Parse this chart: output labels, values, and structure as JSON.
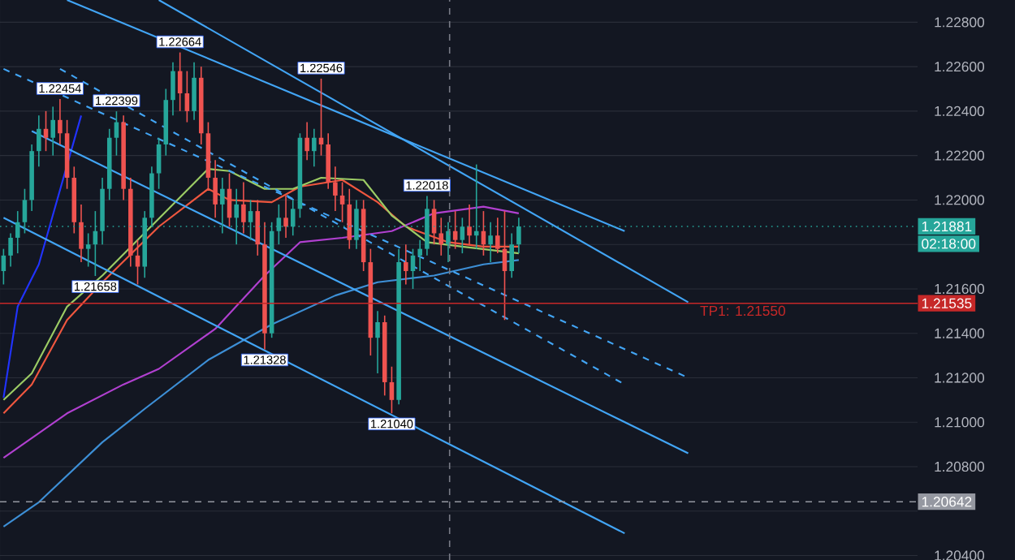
{
  "chart_data": {
    "type": "candlestick",
    "categories": [
      null,
      null,
      null,
      null,
      null,
      null,
      null,
      null,
      null,
      null,
      null,
      null,
      null,
      null,
      null,
      null,
      null,
      null,
      null,
      null,
      null,
      null,
      null,
      null,
      null,
      null,
      null,
      null,
      null,
      null,
      null,
      null,
      null,
      null,
      null,
      null,
      null,
      null,
      null,
      null,
      null,
      null,
      null,
      null,
      null,
      null,
      null,
      null,
      null,
      null,
      null,
      null,
      null,
      null,
      null,
      null,
      null,
      null,
      null,
      null,
      null,
      null,
      null,
      null,
      null,
      null,
      null,
      null,
      null,
      null,
      null,
      null,
      null,
      null,
      null,
      null,
      null,
      null,
      null,
      null,
      null,
      null,
      null,
      null,
      null,
      null,
      null,
      null,
      null,
      null,
      null,
      null,
      null,
      null,
      null,
      null,
      null,
      null,
      null,
      null,
      null,
      null,
      null,
      null,
      null,
      null,
      null,
      null,
      null,
      null,
      null,
      null,
      null,
      null,
      null,
      null,
      null,
      null,
      null,
      null,
      null,
      null,
      null,
      null,
      null,
      null,
      null,
      null,
      null,
      null
    ],
    "ohlc": [
      [
        1.2168,
        1.2178,
        1.2162,
        1.2175
      ],
      [
        1.2175,
        1.2185,
        1.217,
        1.2183
      ],
      [
        1.2183,
        1.2195,
        1.2176,
        1.219
      ],
      [
        1.219,
        1.2205,
        1.2185,
        1.22
      ],
      [
        1.22,
        1.2225,
        1.2195,
        1.2222
      ],
      [
        1.2222,
        1.2238,
        1.2215,
        1.2232
      ],
      [
        1.2232,
        1.224,
        1.2222,
        1.2228
      ],
      [
        1.2228,
        1.2242,
        1.222,
        1.2236
      ],
      [
        1.2236,
        1.22454,
        1.2225,
        1.223
      ],
      [
        1.223,
        1.2236,
        1.2205,
        1.221
      ],
      [
        1.221,
        1.2215,
        1.2185,
        1.219
      ],
      [
        1.219,
        1.2198,
        1.2172,
        1.2178
      ],
      [
        1.2178,
        1.2185,
        1.217,
        1.218
      ],
      [
        1.218,
        1.2195,
        1.21658,
        1.2186
      ],
      [
        1.2186,
        1.221,
        1.218,
        1.2205
      ],
      [
        1.2205,
        1.2232,
        1.22,
        1.2228
      ],
      [
        1.2228,
        1.22399,
        1.222,
        1.2235
      ],
      [
        1.2235,
        1.2238,
        1.22,
        1.2205
      ],
      [
        1.2205,
        1.221,
        1.217,
        1.2175
      ],
      [
        1.2175,
        1.2182,
        1.2162,
        1.217
      ],
      [
        1.217,
        1.2195,
        1.2165,
        1.2192
      ],
      [
        1.2192,
        1.2215,
        1.2188,
        1.2212
      ],
      [
        1.2212,
        1.2228,
        1.2205,
        1.2225
      ],
      [
        1.2225,
        1.225,
        1.222,
        1.2245
      ],
      [
        1.2245,
        1.2262,
        1.2238,
        1.2258
      ],
      [
        1.2258,
        1.22664,
        1.224,
        1.2248
      ],
      [
        1.2248,
        1.2258,
        1.2235,
        1.224
      ],
      [
        1.224,
        1.2262,
        1.2236,
        1.2255
      ],
      [
        1.2255,
        1.226,
        1.2225,
        1.223
      ],
      [
        1.223,
        1.2235,
        1.2205,
        1.221
      ],
      [
        1.221,
        1.2218,
        1.2192,
        1.2198
      ],
      [
        1.2198,
        1.221,
        1.2185,
        1.2205
      ],
      [
        1.2205,
        1.2212,
        1.2188,
        1.2192
      ],
      [
        1.2192,
        1.2205,
        1.218,
        1.2198
      ],
      [
        1.2198,
        1.2208,
        1.2185,
        1.219
      ],
      [
        1.219,
        1.22,
        1.2182,
        1.2195
      ],
      [
        1.2195,
        1.22,
        1.2175,
        1.218
      ],
      [
        1.218,
        1.219,
        1.21328,
        1.214
      ],
      [
        1.214,
        1.219,
        1.2138,
        1.2186
      ],
      [
        1.2186,
        1.2198,
        1.218,
        1.2192
      ],
      [
        1.2192,
        1.2202,
        1.2183,
        1.2188
      ],
      [
        1.2188,
        1.22,
        1.2184,
        1.2196
      ],
      [
        1.2196,
        1.223,
        1.2192,
        1.2228
      ],
      [
        1.2228,
        1.2235,
        1.2218,
        1.2222
      ],
      [
        1.2222,
        1.2232,
        1.2215,
        1.2228
      ],
      [
        1.2228,
        1.22546,
        1.222,
        1.2225
      ],
      [
        1.2225,
        1.223,
        1.2205,
        1.2208
      ],
      [
        1.2208,
        1.2215,
        1.2195,
        1.2202
      ],
      [
        1.2202,
        1.2208,
        1.219,
        1.2198
      ],
      [
        1.2198,
        1.2205,
        1.2178,
        1.2182
      ],
      [
        1.2182,
        1.22,
        1.2178,
        1.2196
      ],
      [
        1.2196,
        1.22,
        1.2168,
        1.2172
      ],
      [
        1.2172,
        1.2178,
        1.213,
        1.2138
      ],
      [
        1.2138,
        1.215,
        1.2122,
        1.2145
      ],
      [
        1.2145,
        1.2148,
        1.2112,
        1.2118
      ],
      [
        1.2118,
        1.2125,
        1.2104,
        1.211
      ],
      [
        1.211,
        1.2178,
        1.2108,
        1.2172
      ],
      [
        1.2172,
        1.218,
        1.2162,
        1.2168
      ],
      [
        1.2168,
        1.2178,
        1.216,
        1.2175
      ],
      [
        1.2175,
        1.2182,
        1.2168,
        1.2178
      ],
      [
        1.2178,
        1.22018,
        1.2175,
        1.2196
      ],
      [
        1.2196,
        1.22,
        1.218,
        1.2185
      ],
      [
        1.2185,
        1.2192,
        1.2175,
        1.218
      ],
      [
        1.218,
        1.219,
        1.2172,
        1.2186
      ],
      [
        1.2186,
        1.2195,
        1.2178,
        1.2182
      ],
      [
        1.2182,
        1.2192,
        1.2176,
        1.2188
      ],
      [
        1.2188,
        1.2198,
        1.218,
        1.2184
      ],
      [
        1.2184,
        1.2216,
        1.2178,
        1.2186
      ],
      [
        1.2186,
        1.2195,
        1.2175,
        1.218
      ],
      [
        1.218,
        1.219,
        1.2172,
        1.2184
      ],
      [
        1.2184,
        1.2192,
        1.2176,
        1.2178
      ],
      [
        1.2178,
        1.2195,
        1.2146,
        1.2168
      ],
      [
        1.2168,
        1.2185,
        1.2165,
        1.218
      ],
      [
        1.218,
        1.2192,
        1.2176,
        1.21881
      ],
      null,
      null,
      null,
      null,
      null,
      null,
      null,
      null,
      null,
      null,
      null,
      null,
      null,
      null,
      null,
      null,
      null,
      null,
      null,
      null,
      null,
      null,
      null,
      null,
      null,
      null,
      null,
      null,
      null,
      null,
      null,
      null,
      null,
      null,
      null,
      null,
      null,
      null,
      null,
      null,
      null,
      null,
      null,
      null,
      null,
      null,
      null,
      null,
      null,
      null,
      null,
      null,
      null,
      null,
      null,
      null
    ],
    "colors": [
      "#26a69a",
      "#26a69a",
      "#26a69a",
      "#26a69a",
      "#26a69a",
      "#26a69a",
      "#ef5350",
      "#26a69a",
      "#ef5350",
      "#ef5350",
      "#ef5350",
      "#ef5350",
      "#26a69a",
      "#26a69a",
      "#26a69a",
      "#26a69a",
      "#26a69a",
      "#ef5350",
      "#ef5350",
      "#ef5350",
      "#26a69a",
      "#26a69a",
      "#26a69a",
      "#26a69a",
      "#26a69a",
      "#ef5350",
      "#ef5350",
      "#26a69a",
      "#ef5350",
      "#ef5350",
      "#ef5350",
      "#26a69a",
      "#ef5350",
      "#26a69a",
      "#ef5350",
      "#26a69a",
      "#ef5350",
      "#ef5350",
      "#26a69a",
      "#26a69a",
      "#ef5350",
      "#26a69a",
      "#26a69a",
      "#ef5350",
      "#26a69a",
      "#ef5350",
      "#ef5350",
      "#ef5350",
      "#ef5350",
      "#ef5350",
      "#26a69a",
      "#ef5350",
      "#ef5350",
      "#26a69a",
      "#ef5350",
      "#ef5350",
      "#26a69a",
      "#ef5350",
      "#26a69a",
      "#26a69a",
      "#26a69a",
      "#ef5350",
      "#ef5350",
      "#26a69a",
      "#ef5350",
      "#26a69a",
      "#ef5350",
      "#26a69a",
      "#ef5350",
      "#26a69a",
      "#ef5350",
      "#ef5350",
      "#26a69a",
      "#26a69a",
      null,
      null,
      null,
      null,
      null,
      null,
      null,
      null,
      null,
      null,
      null,
      null,
      null,
      null,
      null,
      null,
      null,
      null,
      null,
      null,
      null,
      null,
      null,
      null,
      null,
      null,
      null,
      null,
      null,
      null,
      null,
      null,
      null,
      null,
      null,
      null,
      null,
      null,
      null,
      null,
      null,
      null,
      null,
      null,
      null,
      null,
      null,
      null,
      null,
      null,
      null,
      null,
      null,
      null,
      null,
      null
    ],
    "series": [
      {
        "type": "line",
        "color": "#3d8fd6",
        "values": [
          1.2053,
          null,
          null,
          null,
          null,
          1.2064,
          null,
          null,
          null,
          null,
          null,
          null,
          null,
          null,
          1.2091,
          null,
          null,
          null,
          null,
          null,
          1.2106,
          null,
          null,
          null,
          null,
          null,
          null,
          null,
          null,
          1.2128,
          null,
          null,
          null,
          null,
          null,
          null,
          null,
          null,
          1.2144,
          null,
          null,
          null,
          null,
          null,
          null,
          null,
          null,
          1.2157,
          null,
          null,
          null,
          null,
          null,
          1.2163,
          null,
          null,
          null,
          null,
          null,
          null,
          null,
          1.2166,
          null,
          null,
          null,
          null,
          null,
          null,
          1.2171,
          null,
          null,
          null,
          null,
          1.2173,
          null,
          null,
          null,
          null,
          null,
          null,
          null,
          null,
          null,
          null,
          null,
          null,
          null,
          null,
          null,
          null,
          null,
          null,
          null,
          null,
          null,
          null,
          null,
          null,
          null,
          null,
          null,
          null,
          null,
          null,
          null,
          null,
          null,
          null,
          null,
          null,
          null,
          null,
          null,
          null,
          null,
          null,
          null,
          null,
          null,
          null,
          null,
          null,
          null,
          null,
          null,
          null,
          null,
          null,
          null,
          null
        ]
      },
      {
        "type": "line",
        "color": "#b140d0",
        "values": [
          1.2084,
          null,
          null,
          null,
          null,
          null,
          null,
          null,
          null,
          1.2104,
          null,
          null,
          null,
          null,
          null,
          null,
          null,
          1.2117,
          null,
          null,
          null,
          null,
          1.2124,
          null,
          null,
          null,
          null,
          null,
          null,
          null,
          1.2142,
          null,
          null,
          null,
          null,
          null,
          null,
          1.2166,
          null,
          null,
          null,
          null,
          1.2181,
          null,
          null,
          null,
          null,
          null,
          1.2183,
          null,
          null,
          null,
          null,
          null,
          null,
          1.2186,
          null,
          null,
          null,
          null,
          null,
          1.2194,
          null,
          null,
          null,
          null,
          null,
          null,
          1.2197,
          null,
          null,
          null,
          null,
          1.2194,
          null,
          null,
          null,
          null,
          null,
          null,
          null,
          null,
          null,
          null,
          null,
          null,
          null,
          null,
          null,
          null,
          null,
          null,
          null,
          null,
          null,
          null,
          null,
          null,
          null,
          null,
          null,
          null,
          null,
          null,
          null,
          null,
          null,
          null,
          null,
          null,
          null,
          null,
          null,
          null,
          null,
          null,
          null,
          null,
          null,
          null,
          null,
          null,
          null,
          null,
          null,
          null,
          null,
          null,
          null,
          null
        ]
      },
      {
        "type": "line",
        "color": "#f0573f",
        "values": [
          1.2104,
          null,
          null,
          null,
          1.2117,
          null,
          null,
          null,
          null,
          1.2146,
          null,
          null,
          null,
          null,
          1.2163,
          null,
          null,
          null,
          null,
          null,
          null,
          null,
          1.2188,
          null,
          null,
          null,
          null,
          null,
          null,
          1.2205,
          null,
          null,
          1.22,
          null,
          null,
          null,
          null,
          null,
          1.2199,
          null,
          null,
          null,
          1.2206,
          null,
          null,
          null,
          null,
          null,
          1.2209,
          null,
          null,
          null,
          null,
          1.2199,
          null,
          null,
          null,
          1.2188,
          null,
          null,
          null,
          null,
          null,
          1.2181,
          null,
          null,
          null,
          null,
          1.2179,
          null,
          null,
          null,
          null,
          1.2179,
          null,
          null,
          null,
          null,
          null,
          null,
          null,
          null,
          null,
          null,
          null,
          null,
          null,
          null,
          null,
          null,
          null,
          null,
          null,
          null,
          null,
          null,
          null,
          null,
          null,
          null,
          null,
          null,
          null,
          null,
          null,
          null,
          null,
          null,
          null,
          null,
          null,
          null,
          null,
          null,
          null,
          null,
          null,
          null,
          null,
          null,
          null,
          null,
          null,
          null,
          null,
          null,
          null,
          null,
          null,
          null
        ]
      },
      {
        "type": "line",
        "color": "#9ccc65",
        "values": [
          1.211,
          null,
          null,
          null,
          1.2122,
          null,
          null,
          null,
          null,
          1.2152,
          null,
          null,
          null,
          null,
          1.2166,
          null,
          null,
          null,
          null,
          null,
          null,
          null,
          null,
          null,
          null,
          null,
          null,
          null,
          null,
          1.2214,
          null,
          null,
          1.2213,
          null,
          null,
          null,
          null,
          1.2205,
          null,
          null,
          null,
          1.2205,
          null,
          null,
          null,
          1.221,
          null,
          null,
          null,
          null,
          null,
          1.2209,
          null,
          null,
          null,
          1.2193,
          null,
          null,
          null,
          null,
          1.2181,
          null,
          null,
          null,
          null,
          1.2179,
          null,
          null,
          null,
          null,
          null,
          null,
          null,
          1.2176,
          null,
          null,
          null,
          null,
          null,
          null,
          null,
          null,
          null,
          null,
          null,
          null,
          null,
          null,
          null,
          null,
          null,
          null,
          null,
          null,
          null,
          null,
          null,
          null,
          null,
          null,
          null,
          null,
          null,
          null,
          null,
          null,
          null,
          null,
          null,
          null,
          null,
          null,
          null,
          null,
          null,
          null,
          null,
          null,
          null,
          null,
          null,
          null,
          null,
          null,
          null,
          null,
          null,
          null,
          null,
          null
        ]
      },
      {
        "type": "line",
        "color": "#2133ff",
        "values": [
          1.2111,
          null,
          1.2152,
          null,
          null,
          1.2171,
          null,
          null,
          null,
          null,
          null,
          1.2238,
          null,
          null,
          null,
          null,
          null,
          null,
          null,
          null,
          null,
          null,
          null,
          null,
          null,
          null,
          null,
          null,
          null,
          null,
          null,
          null,
          null,
          null,
          null,
          null,
          null,
          null,
          null,
          null,
          null,
          null,
          null,
          null,
          null,
          null,
          null,
          null,
          null,
          null,
          null,
          null,
          null,
          null,
          null,
          null,
          null,
          null,
          null,
          null,
          null,
          null,
          null,
          null,
          null,
          null,
          null,
          null,
          null,
          null,
          null,
          null,
          null,
          null,
          null,
          null,
          null,
          null,
          null,
          null,
          null,
          null,
          null,
          null,
          null,
          null,
          null,
          null,
          null,
          null,
          null,
          null,
          null,
          null,
          null,
          null,
          null,
          null,
          null,
          null,
          null,
          null,
          null,
          null,
          null,
          null,
          null,
          null,
          null,
          null,
          null,
          null,
          null,
          null,
          null,
          null,
          null,
          null,
          null,
          null,
          null,
          null,
          null,
          null,
          null,
          null,
          null,
          null,
          null,
          null
        ]
      },
      {
        "type": "line",
        "color": "#42a5f5",
        "values": [
          null,
          null,
          null,
          null,
          null,
          null,
          null,
          null,
          null,
          1.229,
          null,
          null,
          null,
          null,
          null,
          null,
          null,
          null,
          null,
          null,
          null,
          null,
          null,
          null,
          null,
          null,
          null,
          null,
          null,
          null,
          null,
          null,
          null,
          null,
          null,
          null,
          null,
          null,
          null,
          null,
          null,
          null,
          null,
          null,
          null,
          null,
          null,
          null,
          null,
          null,
          null,
          null,
          null,
          null,
          null,
          null,
          null,
          null,
          null,
          null,
          null,
          null,
          null,
          null,
          null,
          null,
          null,
          null,
          null,
          null,
          null,
          null,
          null,
          null,
          null,
          null,
          null,
          null,
          null,
          null,
          null,
          null,
          null,
          null,
          null,
          null,
          null,
          null,
          1.2186,
          null,
          null,
          null,
          null,
          null,
          null,
          null,
          null,
          null,
          null,
          null,
          null,
          null,
          null,
          null,
          null,
          null,
          null,
          null,
          null,
          null,
          null,
          null,
          null,
          null,
          null,
          null,
          null,
          null,
          null,
          null,
          null,
          null,
          null,
          null,
          null,
          null,
          null,
          null,
          null,
          null
        ]
      },
      {
        "type": "line",
        "color": "#42a5f5",
        "values": [
          null,
          null,
          null,
          null,
          null,
          null,
          null,
          null,
          null,
          null,
          null,
          null,
          null,
          null,
          null,
          null,
          null,
          null,
          null,
          null,
          null,
          null,
          1.229,
          null,
          null,
          null,
          null,
          null,
          null,
          null,
          null,
          null,
          null,
          null,
          null,
          null,
          null,
          null,
          null,
          null,
          null,
          null,
          null,
          null,
          null,
          null,
          null,
          null,
          null,
          null,
          null,
          null,
          null,
          null,
          null,
          null,
          null,
          null,
          null,
          null,
          null,
          null,
          null,
          null,
          null,
          null,
          null,
          null,
          null,
          null,
          null,
          null,
          null,
          null,
          null,
          null,
          null,
          null,
          null,
          null,
          null,
          null,
          null,
          null,
          null,
          null,
          null,
          null,
          null,
          null,
          null,
          null,
          null,
          null,
          null,
          null,
          null,
          1.2154,
          null,
          null,
          null,
          null,
          null,
          null,
          null,
          null,
          null,
          null,
          null,
          null,
          null,
          null,
          null,
          null,
          null,
          null,
          null,
          null,
          null,
          null,
          null,
          null,
          null,
          null,
          null,
          null,
          null,
          null,
          null,
          null
        ]
      },
      {
        "type": "line",
        "color": "#42a5f5",
        "values": [
          null,
          null,
          null,
          null,
          1.2231,
          null,
          null,
          null,
          null,
          null,
          null,
          null,
          null,
          null,
          null,
          null,
          null,
          null,
          null,
          null,
          null,
          null,
          null,
          null,
          null,
          null,
          null,
          null,
          null,
          null,
          null,
          null,
          null,
          null,
          null,
          null,
          null,
          null,
          null,
          null,
          null,
          null,
          null,
          null,
          null,
          null,
          null,
          null,
          null,
          null,
          null,
          null,
          null,
          null,
          null,
          null,
          null,
          null,
          null,
          null,
          null,
          null,
          null,
          null,
          null,
          null,
          null,
          null,
          null,
          null,
          null,
          null,
          null,
          null,
          null,
          null,
          null,
          null,
          null,
          null,
          null,
          null,
          null,
          null,
          null,
          null,
          null,
          null,
          null,
          null,
          null,
          null,
          null,
          null,
          null,
          null,
          null,
          1.2086,
          null,
          null,
          null,
          null,
          null,
          null,
          null,
          null,
          null,
          null,
          null,
          null,
          null,
          null,
          null,
          null,
          null,
          null,
          null,
          null,
          null,
          null,
          null,
          null,
          null,
          null,
          null,
          null,
          null,
          null,
          null,
          null
        ]
      },
      {
        "type": "line",
        "color": "#42a5f5",
        "values": [
          1.2192,
          null,
          null,
          null,
          null,
          null,
          null,
          null,
          null,
          null,
          null,
          null,
          null,
          null,
          null,
          null,
          null,
          null,
          null,
          null,
          null,
          null,
          null,
          null,
          null,
          null,
          null,
          null,
          null,
          null,
          null,
          null,
          null,
          null,
          null,
          null,
          null,
          null,
          null,
          null,
          null,
          null,
          null,
          null,
          null,
          null,
          null,
          null,
          null,
          null,
          null,
          null,
          null,
          null,
          null,
          null,
          null,
          null,
          null,
          null,
          null,
          null,
          null,
          null,
          null,
          null,
          null,
          null,
          null,
          null,
          null,
          null,
          null,
          null,
          null,
          null,
          null,
          null,
          null,
          null,
          null,
          null,
          null,
          null,
          null,
          null,
          null,
          null,
          1.205,
          null,
          null,
          null,
          null,
          null,
          null,
          null,
          null,
          null,
          null,
          null,
          null,
          null,
          null,
          null,
          null,
          null,
          null,
          null,
          null,
          null,
          null,
          null,
          null,
          null,
          null,
          null,
          null,
          null,
          null,
          null,
          null,
          null,
          null,
          null,
          null,
          null,
          null,
          null,
          null,
          null
        ]
      },
      {
        "type": "line",
        "color": "#42a5f5",
        "line_style": "dashed",
        "values": [
          1.2259,
          null,
          null,
          null,
          null,
          null,
          null,
          null,
          null,
          null,
          null,
          null,
          null,
          null,
          null,
          null,
          null,
          null,
          null,
          null,
          null,
          null,
          null,
          null,
          null,
          null,
          null,
          null,
          null,
          null,
          null,
          null,
          null,
          null,
          null,
          null,
          null,
          null,
          null,
          null,
          null,
          null,
          null,
          null,
          null,
          null,
          null,
          null,
          null,
          null,
          null,
          null,
          null,
          null,
          null,
          null,
          null,
          null,
          null,
          null,
          null,
          null,
          null,
          null,
          null,
          null,
          null,
          null,
          null,
          null,
          null,
          null,
          null,
          null,
          null,
          null,
          null,
          null,
          null,
          null,
          null,
          null,
          null,
          null,
          null,
          null,
          null,
          null,
          null,
          null,
          null,
          null,
          null,
          null,
          null,
          null,
          null,
          1.212,
          null,
          null,
          null,
          null,
          null,
          null,
          null,
          null,
          null,
          null,
          null,
          null,
          null,
          null,
          null,
          null,
          null,
          null,
          null,
          null,
          null,
          null,
          null,
          null,
          null,
          null,
          null,
          null,
          null,
          null,
          null,
          null
        ]
      },
      {
        "type": "line",
        "color": "#42a5f5",
        "line_style": "dashed",
        "values": [
          null,
          null,
          null,
          null,
          null,
          null,
          null,
          null,
          1.2259,
          null,
          null,
          null,
          null,
          null,
          null,
          null,
          null,
          null,
          null,
          null,
          null,
          null,
          null,
          null,
          null,
          null,
          null,
          null,
          null,
          null,
          null,
          null,
          null,
          null,
          null,
          null,
          null,
          null,
          null,
          null,
          null,
          null,
          null,
          null,
          null,
          null,
          null,
          null,
          null,
          null,
          null,
          null,
          null,
          null,
          null,
          null,
          null,
          null,
          null,
          null,
          null,
          null,
          null,
          null,
          null,
          null,
          null,
          null,
          null,
          null,
          null,
          null,
          null,
          null,
          null,
          null,
          null,
          null,
          null,
          null,
          null,
          null,
          null,
          null,
          null,
          null,
          null,
          null,
          1.2117,
          null,
          null,
          null,
          null,
          null,
          null,
          null,
          null,
          null,
          null,
          null,
          null,
          null,
          null,
          null,
          null,
          null,
          null,
          null,
          null,
          null,
          null,
          null,
          null,
          null,
          null,
          null,
          null,
          null,
          null,
          null,
          null,
          null,
          null,
          null,
          null,
          null,
          null,
          null,
          null,
          null
        ]
      }
    ],
    "ylim": [
      1.2038,
      1.229
    ],
    "yticks": [
      {
        "value": 1.204,
        "label": "1.20400"
      },
      {
        "value": 1.206,
        "label": null
      },
      {
        "value": 1.208,
        "label": "1.20800"
      },
      {
        "value": 1.21,
        "label": "1.21000"
      },
      {
        "value": 1.212,
        "label": "1.21200"
      },
      {
        "value": 1.214,
        "label": "1.21400"
      },
      {
        "value": 1.216,
        "label": "1.21600"
      },
      {
        "value": 1.218,
        "label": null
      },
      {
        "value": 1.22,
        "label": "1.22000"
      },
      {
        "value": 1.222,
        "label": "1.22200"
      },
      {
        "value": 1.224,
        "label": "1.22400"
      },
      {
        "value": 1.226,
        "label": "1.22600"
      },
      {
        "value": 1.228,
        "label": "1.22800"
      }
    ],
    "tick_labels": "y",
    "grid": "y",
    "ref_lines": [
      {
        "axis": "y",
        "value": 1.21881,
        "label": "1.21881",
        "color": "#26a69a",
        "line_style": "dotted"
      },
      {
        "axis": "y",
        "value": 1.21535,
        "label": "1.21535",
        "color": "#c62828",
        "line_style": "solid"
      },
      {
        "axis": "y",
        "value": 1.20642,
        "label": "1.20642",
        "color": "#9598a1",
        "line_style": "dashed"
      }
    ],
    "annotations": [
      {
        "text": "1.22454",
        "y": 1.22454
      },
      {
        "text": "1.22399",
        "y": 1.22399
      },
      {
        "text": "1.22664",
        "y": 1.22664
      },
      {
        "text": "1.22546",
        "y": 1.22546
      },
      {
        "text": "1.22018",
        "y": 1.22018
      },
      {
        "text": "1.21658",
        "y": 1.21658
      },
      {
        "text": "1.21328",
        "y": 1.21328
      },
      {
        "text": "1.21040",
        "y": 1.2104
      },
      {
        "text": "TP1: 1.21550",
        "y": 1.2155
      },
      "02:18:00"
    ]
  }
}
